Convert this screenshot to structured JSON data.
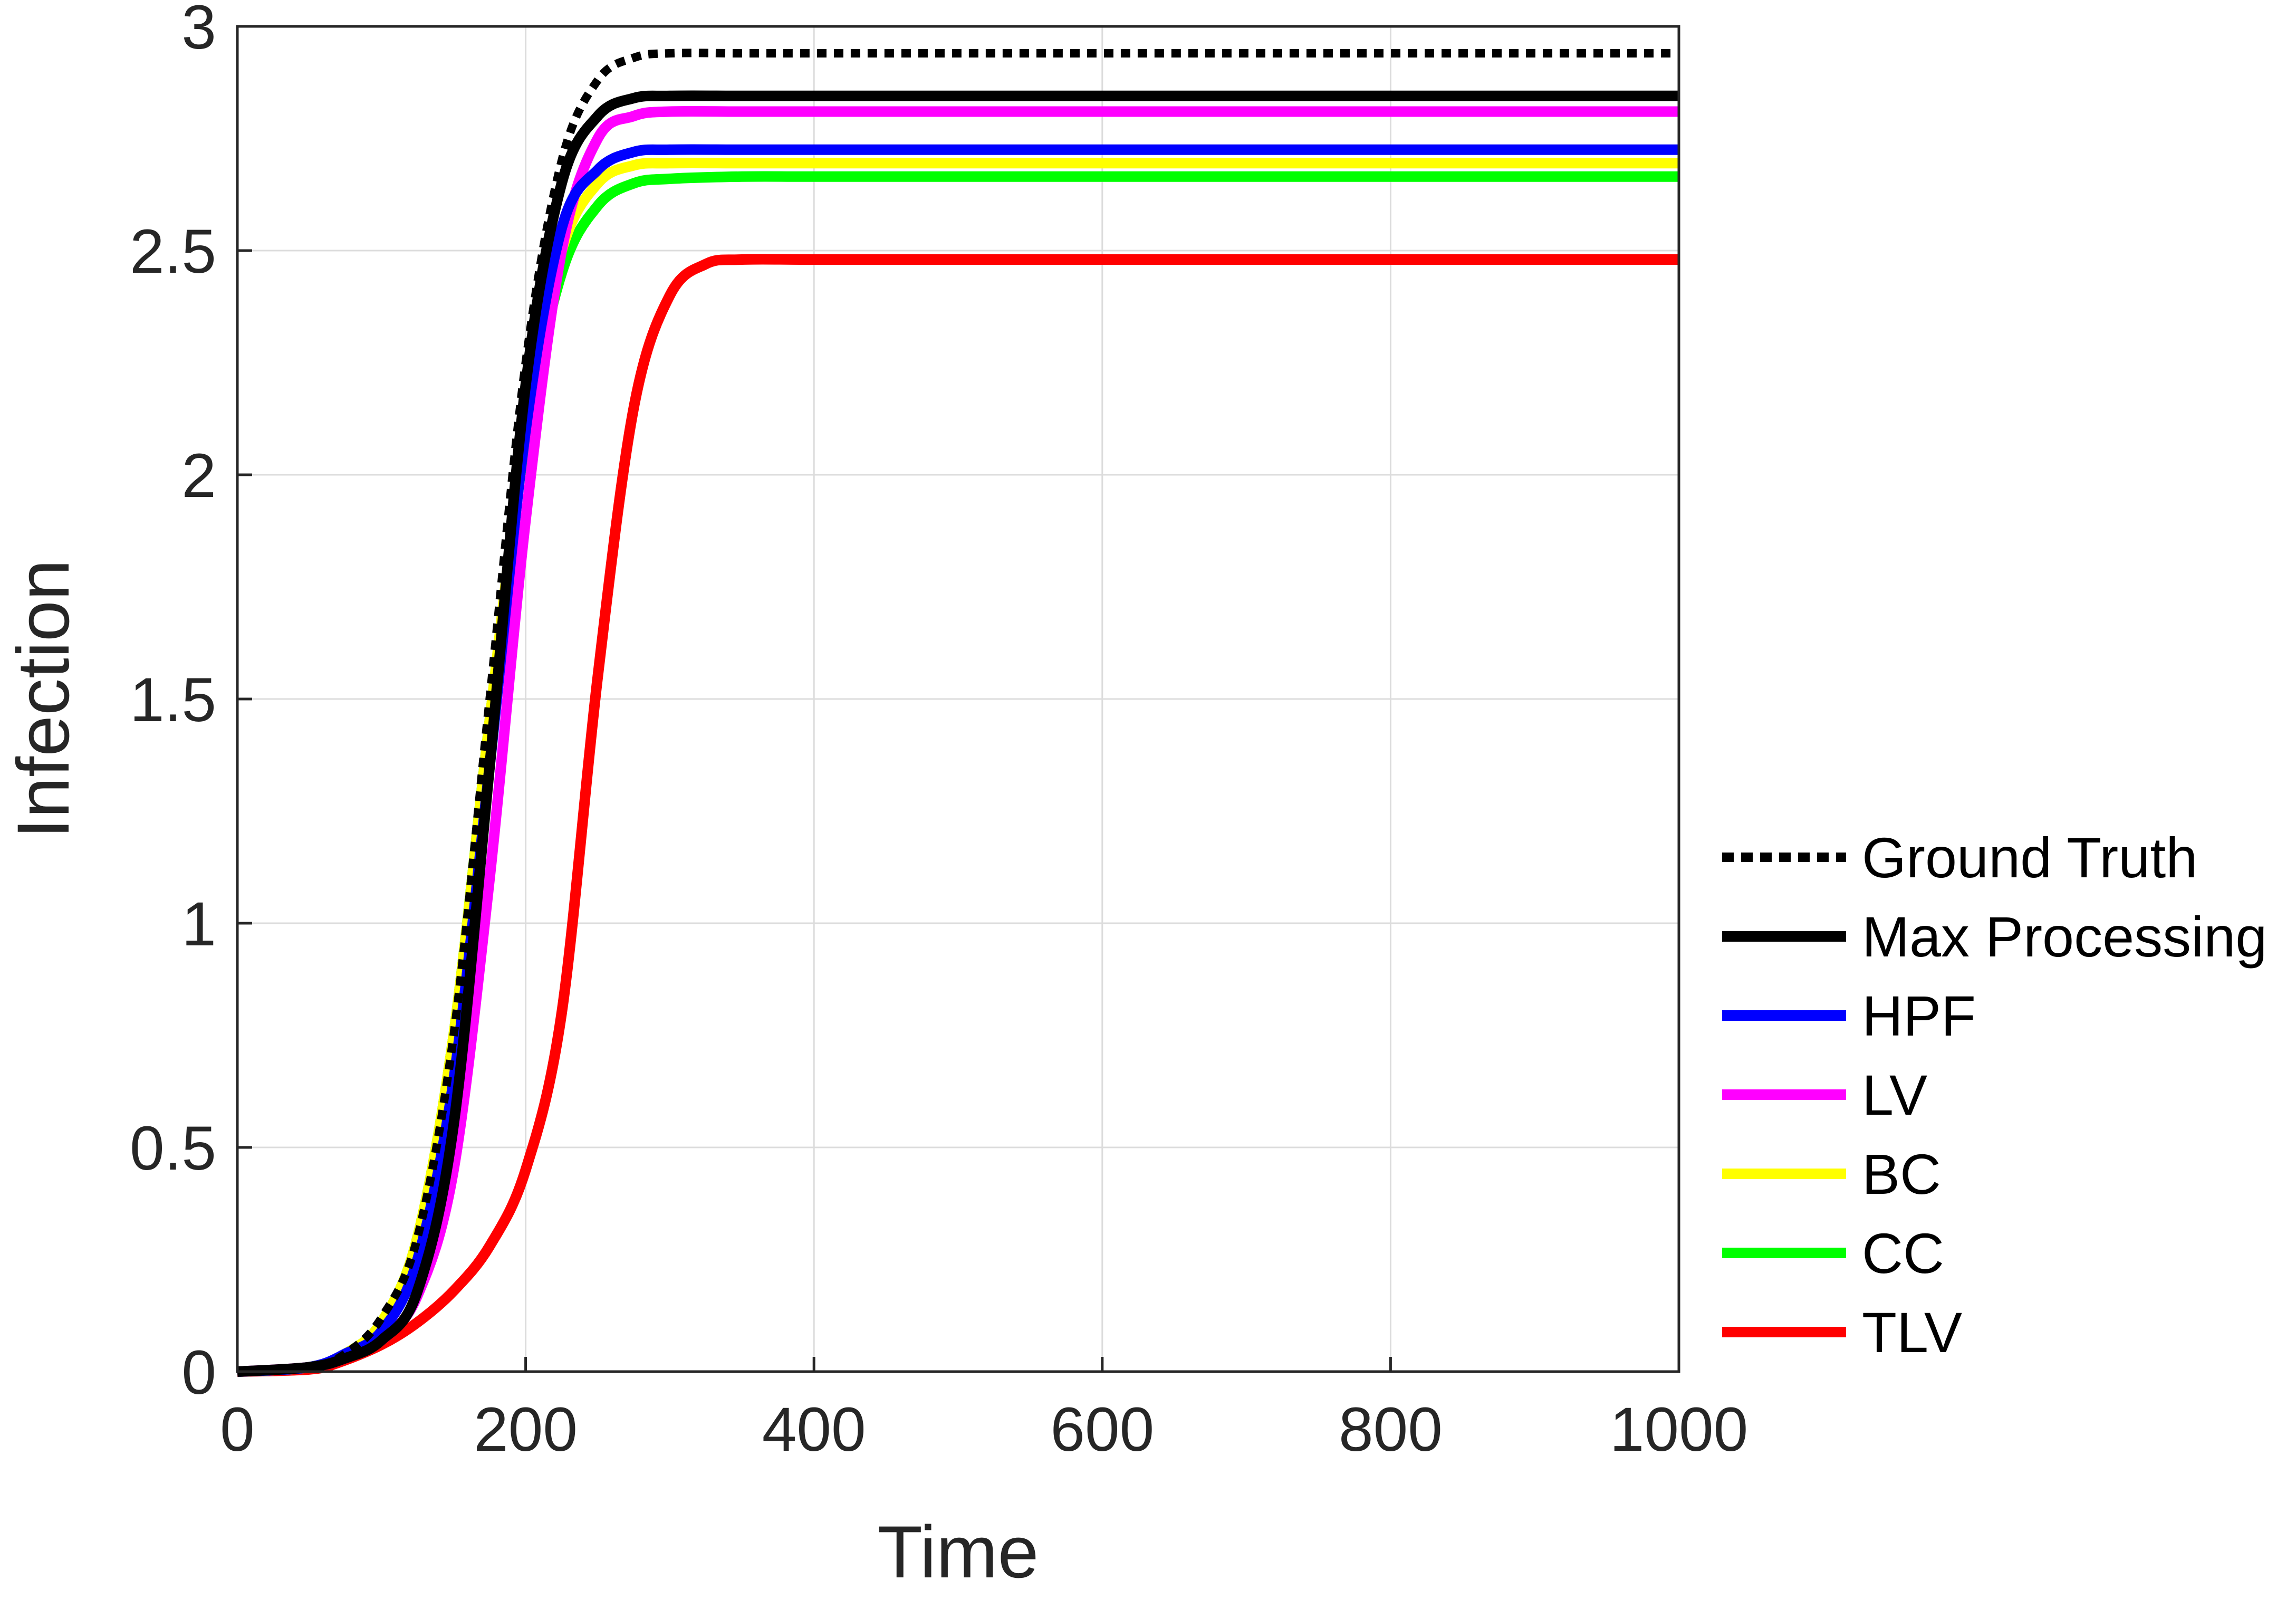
{
  "chart_data": {
    "type": "line",
    "xlabel": "Time",
    "ylabel": "Infection",
    "xlim": [
      0,
      1000
    ],
    "ylim": [
      0,
      3
    ],
    "xticks": [
      "0",
      "200",
      "400",
      "600",
      "800",
      "1000"
    ],
    "yticks": [
      "0",
      "0.5",
      "1",
      "1.5",
      "2",
      "2.5",
      "3"
    ],
    "grid": true,
    "legend_position": "outside-right",
    "series": [
      {
        "name": "Ground Truth",
        "color": "#000000",
        "style": "dotted",
        "x": [
          0,
          50,
          75,
          100,
          125,
          150,
          175,
          200,
          225,
          250,
          275,
          300,
          350,
          400,
          500,
          1000
        ],
        "y": [
          0,
          0.01,
          0.04,
          0.12,
          0.3,
          0.75,
          1.5,
          2.25,
          2.7,
          2.88,
          2.93,
          2.94,
          2.94,
          2.94,
          2.94,
          2.94
        ]
      },
      {
        "name": "Max Processing",
        "color": "#000000",
        "style": "solid",
        "x": [
          0,
          50,
          75,
          100,
          125,
          150,
          175,
          200,
          225,
          250,
          275,
          300,
          350,
          400,
          500,
          1000
        ],
        "y": [
          0,
          0.01,
          0.03,
          0.07,
          0.18,
          0.55,
          1.35,
          2.2,
          2.65,
          2.8,
          2.84,
          2.845,
          2.845,
          2.845,
          2.845,
          2.845
        ]
      },
      {
        "name": "HPF",
        "color": "#0000ff",
        "style": "solid",
        "x": [
          0,
          50,
          75,
          100,
          125,
          150,
          175,
          200,
          225,
          250,
          275,
          300,
          350,
          400,
          500,
          1000
        ],
        "y": [
          0,
          0.01,
          0.04,
          0.09,
          0.25,
          0.65,
          1.35,
          2.1,
          2.55,
          2.68,
          2.72,
          2.725,
          2.725,
          2.725,
          2.725,
          2.725
        ]
      },
      {
        "name": "LV",
        "color": "#ff00ff",
        "style": "solid",
        "x": [
          0,
          50,
          75,
          100,
          125,
          150,
          175,
          200,
          225,
          250,
          275,
          300,
          350,
          400,
          500,
          1000
        ],
        "y": [
          0,
          0.01,
          0.03,
          0.07,
          0.17,
          0.45,
          1.1,
          1.9,
          2.5,
          2.75,
          2.8,
          2.81,
          2.81,
          2.81,
          2.81,
          2.81
        ]
      },
      {
        "name": "BC",
        "color": "#ffff00",
        "style": "solid",
        "x": [
          0,
          50,
          75,
          100,
          125,
          150,
          175,
          200,
          225,
          250,
          275,
          300,
          350,
          400,
          500,
          1000
        ],
        "y": [
          0,
          0.01,
          0.04,
          0.11,
          0.3,
          0.75,
          1.45,
          2.1,
          2.5,
          2.65,
          2.69,
          2.695,
          2.695,
          2.695,
          2.695,
          2.695
        ]
      },
      {
        "name": "CC",
        "color": "#00ff00",
        "style": "solid",
        "x": [
          0,
          50,
          75,
          100,
          125,
          150,
          175,
          200,
          225,
          250,
          275,
          300,
          350,
          400,
          500,
          1000
        ],
        "y": [
          0,
          0.01,
          0.04,
          0.11,
          0.3,
          0.75,
          1.45,
          2.08,
          2.45,
          2.6,
          2.65,
          2.66,
          2.665,
          2.665,
          2.665,
          2.665
        ]
      },
      {
        "name": "TLV",
        "color": "#ff0000",
        "style": "solid",
        "x": [
          0,
          50,
          70,
          100,
          125,
          150,
          175,
          200,
          225,
          250,
          275,
          300,
          325,
          350,
          400,
          500,
          1000
        ],
        "y": [
          0,
          0.005,
          0.02,
          0.06,
          0.11,
          0.18,
          0.28,
          0.45,
          0.8,
          1.55,
          2.15,
          2.4,
          2.47,
          2.48,
          2.48,
          2.48,
          2.48
        ]
      }
    ]
  }
}
